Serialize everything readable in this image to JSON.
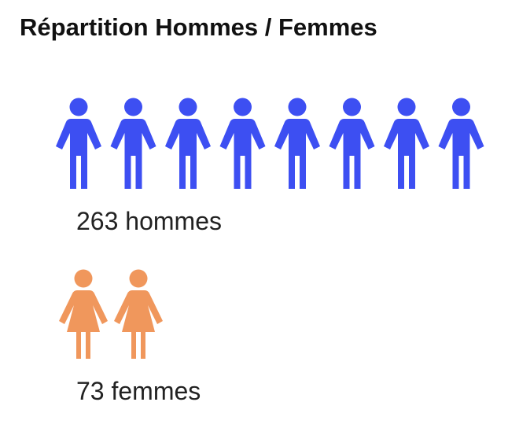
{
  "chart_data": {
    "type": "pictogram",
    "title": "Répartition Hommes / Femmes",
    "series": [
      {
        "color": "#3d4ff2",
        "values": [
          263
        ],
        "value_labels": [
          "263 hommes"
        ],
        "icons": 8,
        "icon": "man"
      },
      {
        "color": "#f0975c",
        "values": [
          73
        ],
        "value_labels": [
          "73 femmes"
        ],
        "icons": 2,
        "icon": "woman"
      }
    ]
  }
}
